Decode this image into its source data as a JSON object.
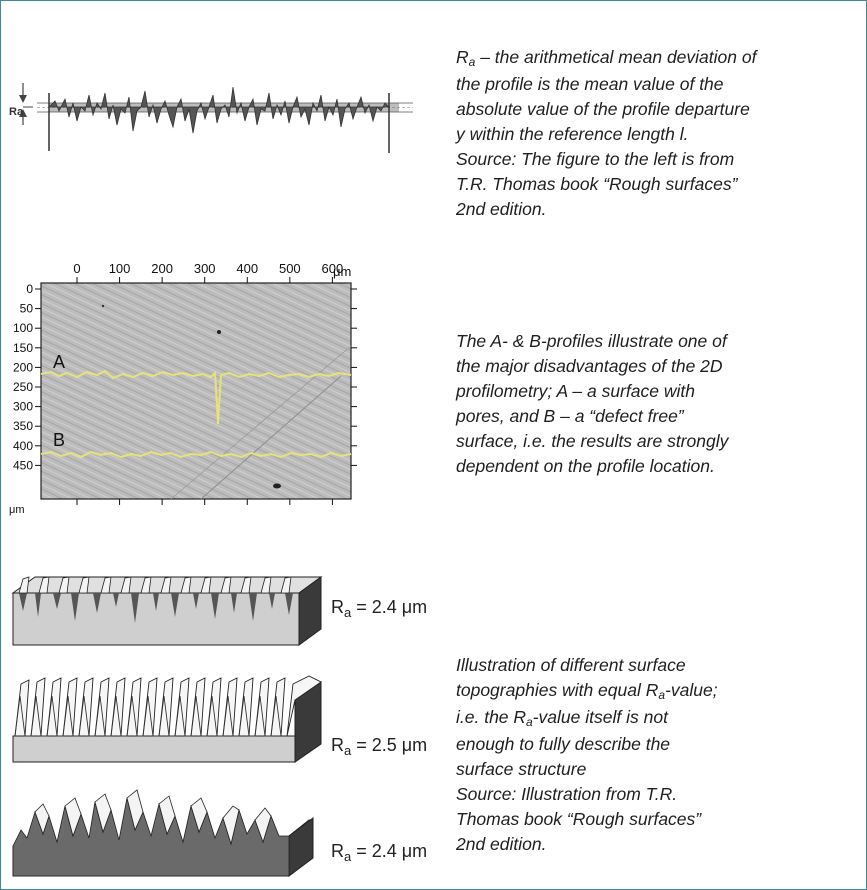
{
  "section1": {
    "ra_symbol": "R",
    "ra_sub": "a",
    "line1_rest": " – the arithmetical mean deviation of",
    "line2": "the profile is the mean value of the",
    "line3": "absolute value of the profile departure",
    "line4": "y within the reference length l.",
    "line5": "Source: The figure to the left is from",
    "line6": "T.R. Thomas book “Rough surfaces”",
    "line7": "2nd edition.",
    "figure_label": "Ra"
  },
  "section2": {
    "lines": [
      "The A- & B-profiles illustrate one of",
      "the major disadvantages of the 2D",
      "profilometry;  A – a surface with",
      "pores, and B – a “defect free”",
      "surface, i.e. the results are strongly",
      "dependent on the profile location."
    ],
    "x_ticks": [
      "0",
      "100",
      "200",
      "300",
      "400",
      "500",
      "600"
    ],
    "x_unit": "μm",
    "y_ticks": [
      "0",
      "50",
      "100",
      "150",
      "200",
      "250",
      "300",
      "350",
      "400",
      "450"
    ],
    "y_unit": "μm",
    "profile_a_label": "A",
    "profile_b_label": "B",
    "profile_color": "#e8e27a"
  },
  "section3": {
    "labels": [
      {
        "r": "R",
        "sub": "a",
        "value": " = 2.4 μm"
      },
      {
        "r": "R",
        "sub": "a",
        "value": " = 2.5 μm"
      },
      {
        "r": "R",
        "sub": "a",
        "value": " = 2.4 μm"
      }
    ],
    "line1": "Illustration of different surface",
    "line2_pre": "topographies with equal R",
    "line2_sub": "a",
    "line2_post": "-value;",
    "line3_pre": "i.e. the R",
    "line3_sub": "a",
    "line3_post": "-value itself is not",
    "line4": "enough to fully describe the",
    "line5": "surface structure",
    "line6": "Source: Illustration from T.R.",
    "line7": "Thomas book “Rough surfaces”",
    "line8": "2nd edition."
  }
}
